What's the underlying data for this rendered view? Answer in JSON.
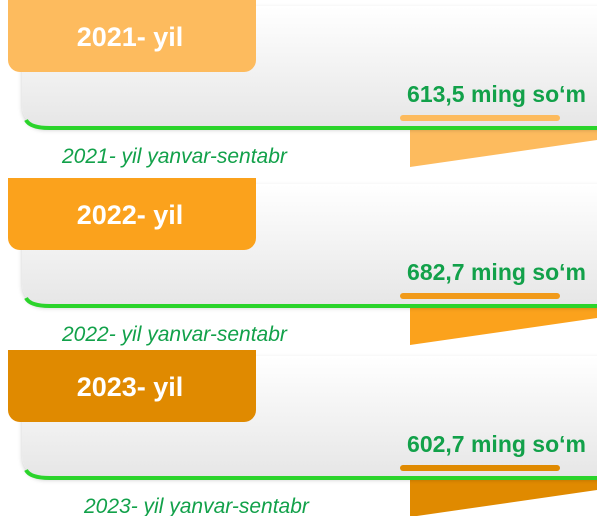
{
  "items": [
    {
      "year": "2021- yil",
      "value": "613,5 ming so‘m",
      "period": "2021- yil yanvar-sentabr"
    },
    {
      "year": "2022- yil",
      "value": "682,7 ming so‘m",
      "period": "2022- yil yanvar-sentabr"
    },
    {
      "year": "2023- yil",
      "value": "602,7 ming so‘m",
      "period": "2023- yil yanvar-sentabr"
    }
  ]
}
